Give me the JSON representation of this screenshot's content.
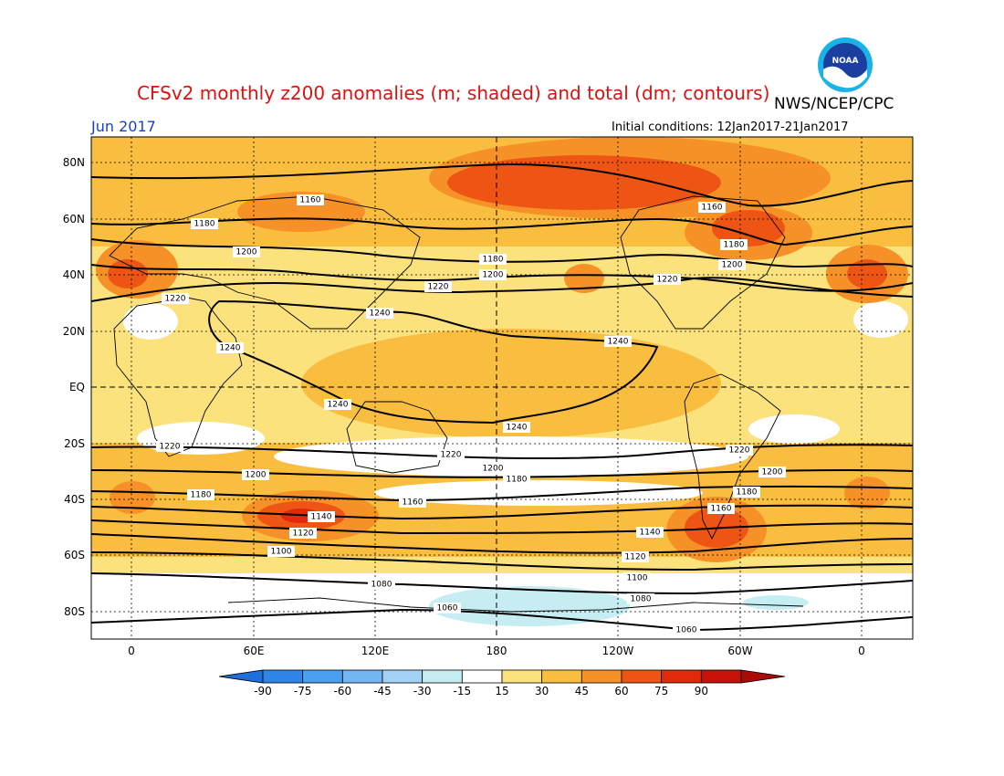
{
  "header": {
    "title": "CFSv2 monthly z200 anomalies (m; shaded) and total (dm; contours)",
    "period": "Jun 2017",
    "agency": "NWS/NCEP/CPC",
    "initial_conditions": "Initial conditions: 12Jan2017-21Jan2017",
    "logo_text": "NOAA"
  },
  "map": {
    "lat_labels": [
      "80N",
      "60N",
      "40N",
      "20N",
      "EQ",
      "20S",
      "40S",
      "60S",
      "80S"
    ],
    "lon_labels": [
      "0",
      "60E",
      "120E",
      "180",
      "120W",
      "60W",
      "0"
    ],
    "contour_labels": [
      "1160",
      "1180",
      "1200",
      "1220",
      "1240",
      "1240",
      "1240",
      "1240",
      "1180",
      "1200",
      "1220",
      "1220",
      "1160",
      "1180",
      "1200",
      "1240",
      "1220",
      "1200",
      "1180",
      "1160",
      "1140",
      "1120",
      "1100",
      "1220",
      "1200",
      "1180",
      "1140",
      "1120",
      "1100",
      "1080",
      "1060",
      "1220",
      "1200",
      "1180",
      "1160",
      "1080",
      "1060"
    ]
  },
  "colorbar": {
    "ticks": [
      "-90",
      "-75",
      "-60",
      "-45",
      "-30",
      "-15",
      "15",
      "30",
      "45",
      "60",
      "75",
      "90"
    ],
    "colors": [
      "#1e6edc",
      "#2f86e8",
      "#4a9ff0",
      "#72b6f4",
      "#a2d2f6",
      "#c6eef2",
      "#ffffff",
      "#fbe27c",
      "#f9bd40",
      "#f59127",
      "#ee5514",
      "#e22a0a",
      "#c61208",
      "#aa0a08"
    ]
  },
  "shading_colors": {
    "neg15": "#c6eef2",
    "neutral": "#ffffff",
    "c15": "#fbe27c",
    "c30": "#f9bd40",
    "c45": "#f59127",
    "c60": "#ee5514",
    "c75": "#e22a0a"
  }
}
